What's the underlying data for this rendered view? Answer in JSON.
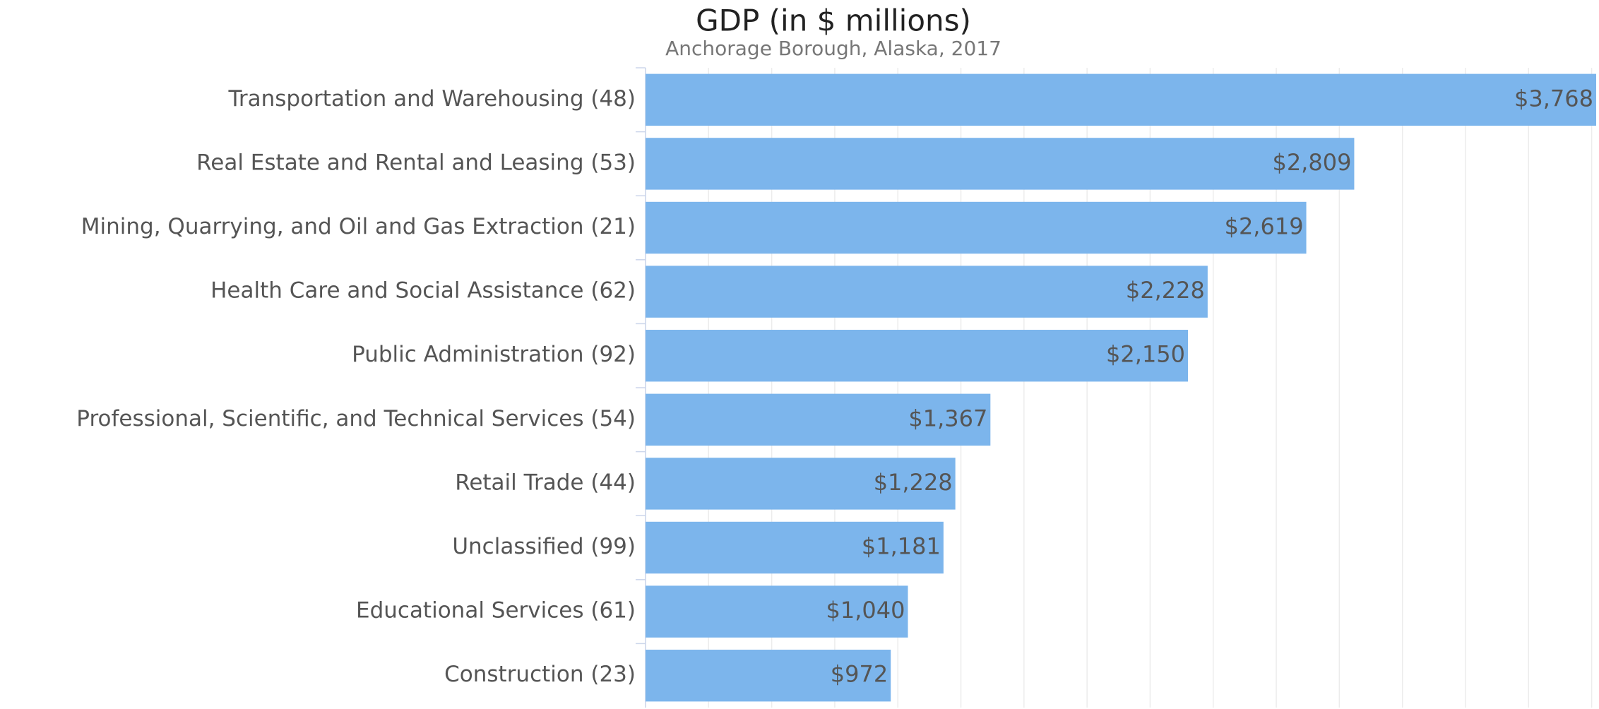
{
  "chart_data": {
    "type": "bar",
    "orientation": "horizontal",
    "title": "GDP (in $ millions)",
    "subtitle": "Anchorage Borough, Alaska, 2017",
    "categories": [
      "Transportation and Warehousing (48)",
      "Real Estate and Rental and Leasing (53)",
      "Mining, Quarrying, and Oil and Gas Extraction (21)",
      "Health Care and Social Assistance (62)",
      "Public Administration (92)",
      "Professional, Scientific, and Technical Services (54)",
      "Retail Trade (44)",
      "Unclassified (99)",
      "Educational Services (61)",
      "Construction (23)"
    ],
    "values": [
      3768,
      2809,
      2619,
      2228,
      2150,
      1367,
      1228,
      1181,
      1040,
      972
    ],
    "value_labels": [
      "$3,768",
      "$2,809",
      "$2,619",
      "$2,228",
      "$2,150",
      "$1,367",
      "$1,228",
      "$1,181",
      "$1,040",
      "$972"
    ],
    "color": "#7cb5ec",
    "xlim": [
      0,
      3768
    ],
    "xticks": [
      0,
      250,
      500,
      750,
      1000,
      1250,
      1500,
      1750,
      2000,
      2250,
      2500,
      2750,
      3000,
      3250,
      3500,
      3750
    ],
    "grid": true
  }
}
